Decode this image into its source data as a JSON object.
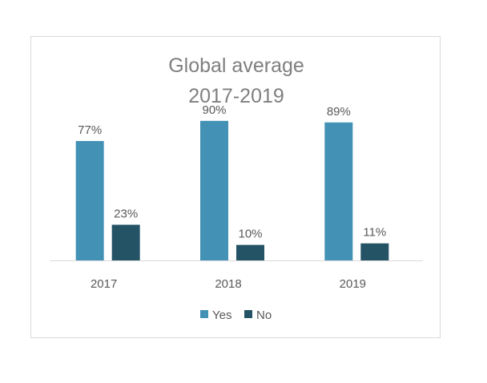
{
  "chart_data": {
    "type": "bar",
    "title_lines": [
      "Global average",
      "2017-2019"
    ],
    "categories": [
      "2017",
      "2018",
      "2019"
    ],
    "series": [
      {
        "name": "Yes",
        "values": [
          77,
          90,
          89
        ],
        "labels": [
          "77%",
          "90%",
          "89%"
        ],
        "color": "#4391b4"
      },
      {
        "name": "No",
        "values": [
          23,
          10,
          11
        ],
        "labels": [
          "23%",
          "10%",
          "11%"
        ],
        "color": "#245366"
      }
    ],
    "ylim": [
      0,
      100
    ],
    "grid": false,
    "legend_position": "bottom"
  }
}
